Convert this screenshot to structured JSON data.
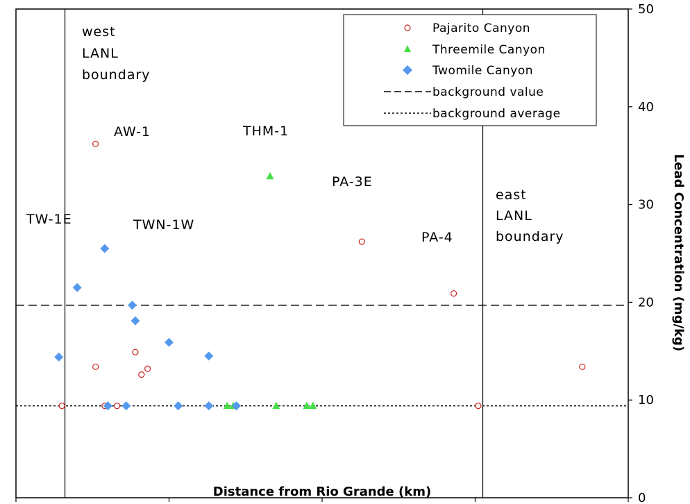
{
  "chart_data": {
    "type": "scatter",
    "title": "",
    "xlabel": "Distance from Rio Grande (km)",
    "ylabel": "Lead Concentration (mg/kg)",
    "xlim": [
      20,
      0
    ],
    "ylim": [
      0,
      50
    ],
    "x_ticks": [
      "20",
      "15",
      "10",
      "5",
      "0"
    ],
    "y_ticks": [
      "0",
      "10",
      "20",
      "30",
      "40",
      "50"
    ],
    "y_axis_side": "right",
    "grid": false,
    "legend_position": "top-right",
    "series": [
      {
        "name": "Pajarito Canyon",
        "marker": "open-circle",
        "color": "#cc2222",
        "points": [
          [
            18.5,
            9.4
          ],
          [
            17.4,
            36.2
          ],
          [
            17.4,
            13.4
          ],
          [
            17.1,
            9.4
          ],
          [
            16.7,
            9.4
          ],
          [
            16.1,
            14.9
          ],
          [
            15.9,
            12.6
          ],
          [
            15.7,
            13.2
          ],
          [
            8.7,
            26.2
          ],
          [
            5.7,
            20.9
          ],
          [
            4.9,
            9.4
          ],
          [
            1.5,
            13.4
          ]
        ]
      },
      {
        "name": "Threemile Canyon",
        "marker": "triangle",
        "color": "#44dd44",
        "points": [
          [
            11.7,
            32.9
          ],
          [
            13.1,
            9.4
          ],
          [
            12.9,
            9.4
          ],
          [
            11.5,
            9.4
          ],
          [
            10.5,
            9.4
          ],
          [
            10.3,
            9.4
          ]
        ]
      },
      {
        "name": "Twomile Canyon",
        "marker": "diamond",
        "color": "#5599ee",
        "points": [
          [
            18.6,
            14.4
          ],
          [
            18.0,
            21.5
          ],
          [
            17.1,
            25.5
          ],
          [
            17.0,
            9.4
          ],
          [
            16.4,
            9.4
          ],
          [
            16.2,
            19.7
          ],
          [
            16.1,
            18.1
          ],
          [
            15.0,
            15.9
          ],
          [
            14.7,
            9.4
          ],
          [
            13.7,
            14.5
          ],
          [
            13.7,
            9.4
          ],
          [
            12.8,
            9.4
          ]
        ]
      }
    ],
    "reference_lines": [
      {
        "name": "background value",
        "style": "dashed",
        "y": 19.7
      },
      {
        "name": "background average",
        "style": "dotted",
        "y": 9.4
      }
    ],
    "boundary_lines": [
      {
        "x": 18.4,
        "label": [
          "west",
          "LANL",
          "boundary"
        ]
      },
      {
        "x": 4.75,
        "label": [
          "east",
          "LANL",
          "boundary"
        ]
      }
    ],
    "annotations": [
      "AW-1",
      "THM-1",
      "PA-3E",
      "PA-4",
      "TW-1E",
      "TWN-1W"
    ],
    "legend": [
      "Pajarito Canyon",
      "Threemile Canyon",
      "Twomile Canyon",
      "background value",
      "background average"
    ]
  }
}
